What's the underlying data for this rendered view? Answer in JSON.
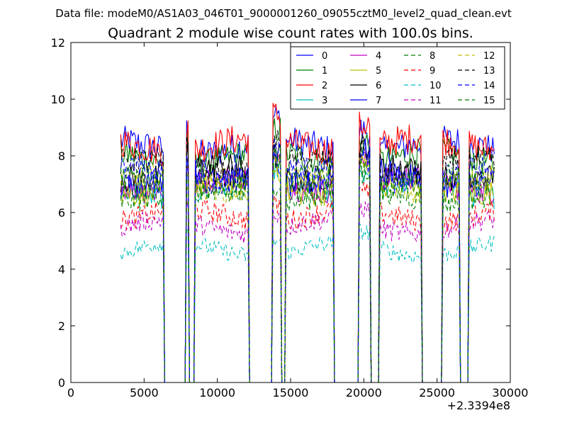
{
  "header": {
    "datafile": "Data file: modeM0/AS1A03_046T01_9000001260_09055cztM0_level2_quad_clean.evt"
  },
  "chart_data": {
    "type": "line",
    "title": "Quadrant 2 module wise count rates with 100.0s bins.",
    "xlabel": "",
    "ylabel": "",
    "xlim": [
      0,
      30000
    ],
    "ylim": [
      0,
      12
    ],
    "x_offset_label": "+2.3394e8",
    "x_ticks": [
      0,
      5000,
      10000,
      15000,
      20000,
      25000,
      30000
    ],
    "x_tick_labels": [
      "0",
      "5000",
      "10000",
      "15000",
      "20000",
      "25000",
      "30000"
    ],
    "y_ticks": [
      0,
      2,
      4,
      6,
      8,
      10,
      12
    ],
    "y_tick_labels": [
      "0",
      "2",
      "4",
      "6",
      "8",
      "10",
      "12"
    ],
    "grid": false,
    "legend_position": "top-right",
    "segments": [
      {
        "start": 3400,
        "end": 6300
      },
      {
        "start": 7900,
        "end": 8050
      },
      {
        "start": 8500,
        "end": 12100
      },
      {
        "start": 13800,
        "end": 14300
      },
      {
        "start": 14700,
        "end": 17900
      },
      {
        "start": 19700,
        "end": 20400
      },
      {
        "start": 21100,
        "end": 23900
      },
      {
        "start": 25400,
        "end": 26500
      },
      {
        "start": 27200,
        "end": 28900
      }
    ],
    "series": [
      {
        "name": "0",
        "color": "#0000ff",
        "dash": "solid",
        "level": 8.3
      },
      {
        "name": "1",
        "color": "#008000",
        "dash": "solid",
        "level": 7.9
      },
      {
        "name": "2",
        "color": "#ff0000",
        "dash": "solid",
        "level": 8.4
      },
      {
        "name": "3",
        "color": "#00bfbf",
        "dash": "solid",
        "level": 6.8
      },
      {
        "name": "4",
        "color": "#bf00bf",
        "dash": "solid",
        "level": 7.0
      },
      {
        "name": "5",
        "color": "#bfbf00",
        "dash": "solid",
        "level": 6.9
      },
      {
        "name": "6",
        "color": "#000000",
        "dash": "solid",
        "level": 7.4
      },
      {
        "name": "7",
        "color": "#0000ff",
        "dash": "solid",
        "level": 7.2
      },
      {
        "name": "8",
        "color": "#008000",
        "dash": "dashed",
        "level": 6.6
      },
      {
        "name": "9",
        "color": "#ff0000",
        "dash": "dashed",
        "level": 5.9
      },
      {
        "name": "10",
        "color": "#00bfbf",
        "dash": "dashed",
        "level": 4.7
      },
      {
        "name": "11",
        "color": "#bf00bf",
        "dash": "dashed",
        "level": 5.5
      },
      {
        "name": "12",
        "color": "#bfbf00",
        "dash": "dashed",
        "level": 7.0
      },
      {
        "name": "13",
        "color": "#000000",
        "dash": "dashed",
        "level": 7.6
      },
      {
        "name": "14",
        "color": "#0000ff",
        "dash": "dashed",
        "level": 7.3
      },
      {
        "name": "15",
        "color": "#008000",
        "dash": "dashed",
        "level": 7.0
      }
    ]
  }
}
